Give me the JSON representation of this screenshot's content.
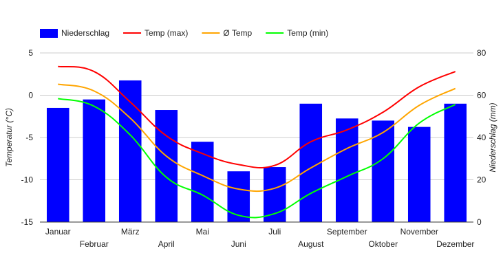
{
  "chart_data": {
    "type": "bar",
    "categories": [
      "Januar",
      "Februar",
      "März",
      "April",
      "Mai",
      "Juni",
      "Juli",
      "August",
      "September",
      "Oktober",
      "November",
      "Dezember"
    ],
    "series": [
      {
        "name": "Niederschlag",
        "kind": "bar",
        "axis": "right",
        "color": "#0000ff",
        "values": [
          54,
          58,
          67,
          53,
          38,
          24,
          26,
          56,
          49,
          48,
          45,
          56
        ]
      },
      {
        "name": "Temp (max)",
        "kind": "line",
        "axis": "left",
        "color": "#ff0000",
        "values": [
          3.4,
          2.8,
          -0.8,
          -4.8,
          -6.9,
          -8.2,
          -8.3,
          -5.5,
          -4.1,
          -2.0,
          1.0,
          2.8
        ]
      },
      {
        "name": "Ø Temp",
        "kind": "line",
        "axis": "left",
        "color": "#ffa500",
        "values": [
          1.3,
          0.5,
          -2.7,
          -7.2,
          -9.5,
          -11.1,
          -11.0,
          -8.6,
          -6.3,
          -4.4,
          -1.2,
          0.8
        ]
      },
      {
        "name": "Temp (min)",
        "kind": "line",
        "axis": "left",
        "color": "#00ff00",
        "values": [
          -0.4,
          -1.3,
          -4.7,
          -9.7,
          -11.8,
          -14.2,
          -14.0,
          -11.6,
          -9.6,
          -7.5,
          -3.3,
          -1.1
        ]
      }
    ],
    "y_left": {
      "label": "Temperatur (°C)",
      "min": -15,
      "max": 5,
      "ticks": [
        "5",
        "0",
        "-5",
        "-10",
        "-15"
      ],
      "tick_values": [
        5,
        0,
        -5,
        -10,
        -15
      ]
    },
    "y_right": {
      "label": "Niederschlag (mm)",
      "min": 0,
      "max": 80,
      "ticks": [
        "80",
        "60",
        "40",
        "20",
        "0"
      ],
      "tick_values": [
        80,
        60,
        40,
        20,
        0
      ]
    },
    "legend_position": "top-left",
    "grid": true
  }
}
